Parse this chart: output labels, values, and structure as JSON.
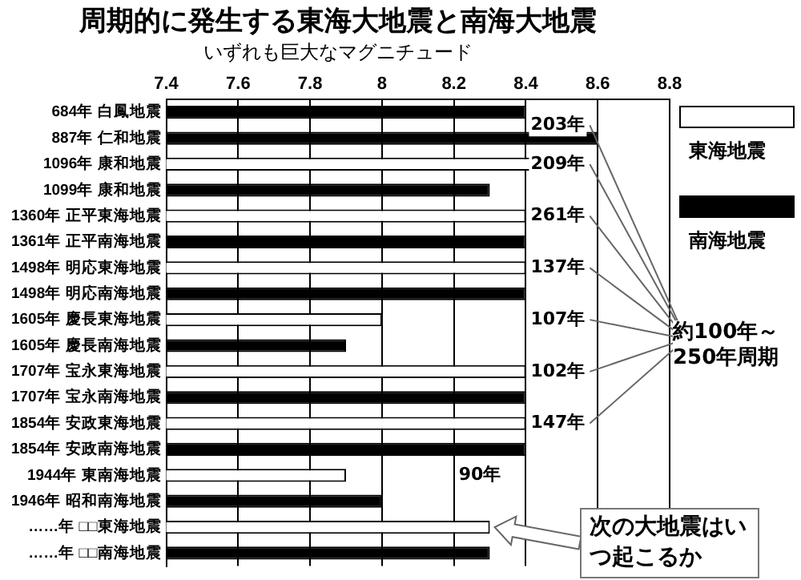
{
  "chart_data": {
    "type": "bar",
    "orientation": "horizontal",
    "title": "周期的に発生する東海大地震と南海大地震",
    "subtitle": "いずれも巨大なマグニチュード",
    "categories": [
      "684年 白鳳地震",
      "887年 仁和地震",
      "1096年 康和地震",
      "1099年 康和地震",
      "1360年 正平東海地震",
      "1361年 正平南海地震",
      "1498年 明応東海地震",
      "1498年 明応南海地震",
      "1605年 慶長東海地震",
      "1605年 慶長南海地震",
      "1707年 宝永東海地震",
      "1707年 宝永南海地震",
      "1854年 安政東海地震",
      "1854年 安政南海地震",
      "1944年 東南海地震",
      "1946年 昭和南海地震",
      "……年 □□東海地震",
      "……年 □□南海地震"
    ],
    "series": [
      {
        "name": "東海地震",
        "color": "#ffffff",
        "values": [
          null,
          null,
          8.5,
          null,
          8.4,
          null,
          8.4,
          null,
          8.0,
          null,
          8.4,
          null,
          8.4,
          null,
          7.9,
          null,
          8.3,
          null
        ]
      },
      {
        "name": "南海地震",
        "color": "#000000",
        "values": [
          8.4,
          8.6,
          null,
          8.3,
          null,
          8.4,
          null,
          8.4,
          null,
          7.9,
          null,
          8.4,
          null,
          8.4,
          null,
          8.0,
          null,
          8.3
        ]
      }
    ],
    "xlim": [
      7.4,
      8.8
    ],
    "xticks": [
      7.4,
      7.6,
      7.8,
      8,
      8.2,
      8.4,
      8.6,
      8.8
    ],
    "grid": "x",
    "legend": "right",
    "annotations": [
      "203年",
      "209年",
      "261年",
      "137年",
      "107年",
      "102年",
      "147年",
      "90年",
      "約100年～250年周期",
      "次の大地震はいつ起こるか"
    ]
  }
}
